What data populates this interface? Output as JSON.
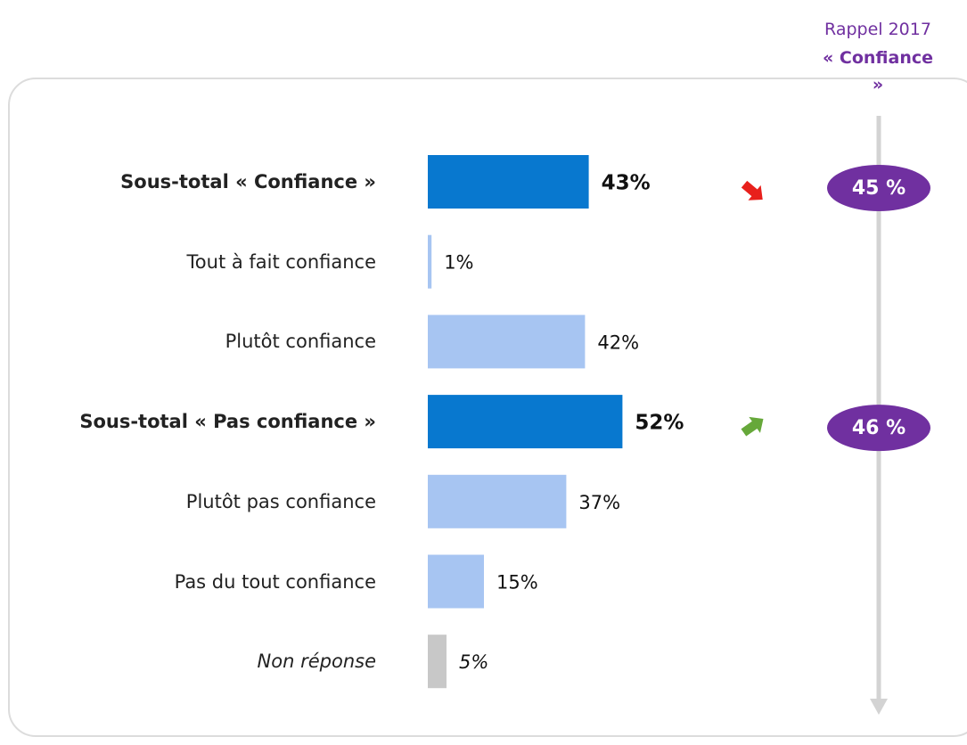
{
  "chart_data": {
    "type": "bar",
    "orientation": "horizontal",
    "categories": [
      "Sous-total « Confiance »",
      "Tout à fait confiance",
      "Plutôt confiance",
      "Sous-total « Pas confiance »",
      "Plutôt pas confiance",
      "Pas du tout confiance",
      "Non réponse"
    ],
    "values": [
      43,
      1,
      42,
      52,
      37,
      15,
      5
    ],
    "value_labels": [
      "43%",
      "1%",
      "42%",
      "52%",
      "37%",
      "15%",
      "5%"
    ],
    "colors": [
      "#0878cf",
      "#a7c5f2",
      "#a7c5f2",
      "#0878cf",
      "#a7c5f2",
      "#a7c5f2",
      "#c8c8c8"
    ],
    "label_styles": [
      "bold",
      "normal",
      "normal",
      "bold",
      "normal",
      "normal",
      "italic"
    ],
    "recall": {
      "title": "Rappel 2017",
      "subtitle": "« Confiance »",
      "color": "#7030a0",
      "values": [
        45,
        null,
        null,
        46,
        null,
        null,
        null
      ],
      "value_labels": [
        "45 %",
        null,
        null,
        "46 %",
        null,
        null,
        null
      ]
    }
  }
}
